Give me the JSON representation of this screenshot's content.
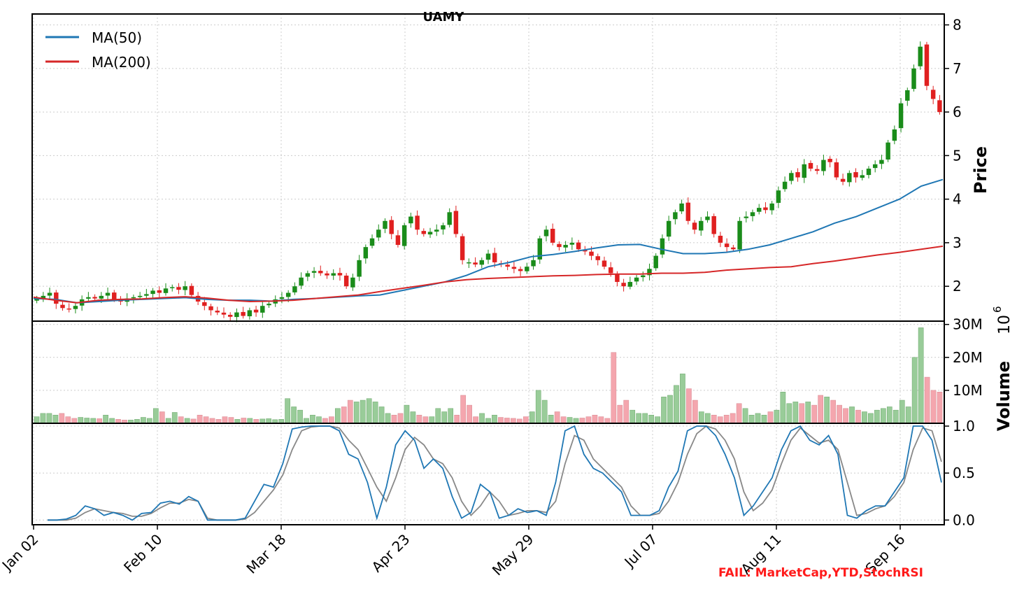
{
  "title": "UAMY",
  "fail_note": "FAIL: MarketCap,YTD,StochRSI",
  "colors": {
    "up": "#1a8c1a",
    "down": "#e02020",
    "ma50": "#1f77b4",
    "ma200": "#d62728",
    "vol_up": "#99cc99",
    "vol_down": "#f4a6ae",
    "stoch_k": "#1f77b4",
    "stoch_d": "#888888",
    "grid": "#cccccc",
    "fail": "#ff1a1a"
  },
  "chart_data": {
    "type": "line",
    "x_ticks": [
      "Jan 02",
      "Feb 10",
      "Mar 18",
      "Apr 23",
      "May 29",
      "Jul 07",
      "Aug 11",
      "Sep 16"
    ],
    "legend": [
      "MA(50)",
      "MA(200)"
    ],
    "legend_position": "top-left",
    "grid": true,
    "price_panel": {
      "ylabel": "Price",
      "y_ticks": [
        2,
        3,
        4,
        5,
        6,
        7,
        8
      ],
      "ylim": [
        1.2,
        8.25
      ],
      "series": [
        {
          "name": "Close (approx.)",
          "values": [
            1.72,
            1.78,
            1.85,
            1.6,
            1.5,
            1.48,
            1.55,
            1.7,
            1.75,
            1.72,
            1.78,
            1.85,
            1.7,
            1.65,
            1.72,
            1.75,
            1.78,
            1.82,
            1.9,
            1.85,
            1.95,
            1.98,
            1.92,
            2.0,
            1.8,
            1.65,
            1.55,
            1.45,
            1.4,
            1.35,
            1.3,
            1.4,
            1.32,
            1.45,
            1.4,
            1.55,
            1.6,
            1.7,
            1.75,
            1.85,
            2.0,
            2.2,
            2.3,
            2.35,
            2.3,
            2.25,
            2.3,
            2.25,
            2.0,
            2.2,
            2.6,
            2.9,
            3.1,
            3.3,
            3.5,
            3.2,
            2.95,
            3.4,
            3.6,
            3.3,
            3.2,
            3.25,
            3.3,
            3.4,
            3.7,
            3.2,
            2.6,
            2.55,
            2.5,
            2.6,
            2.75,
            2.55,
            2.5,
            2.45,
            2.4,
            2.35,
            2.45,
            2.6,
            3.1,
            3.3,
            3.0,
            2.9,
            2.95,
            3.0,
            2.85,
            2.8,
            2.7,
            2.6,
            2.45,
            2.3,
            2.1,
            2.0,
            2.1,
            2.2,
            2.25,
            2.4,
            2.7,
            3.1,
            3.5,
            3.7,
            3.9,
            3.5,
            3.3,
            3.5,
            3.6,
            3.2,
            3.0,
            2.9,
            2.85,
            3.5,
            3.6,
            3.7,
            3.8,
            3.75,
            3.9,
            4.2,
            4.4,
            4.6,
            4.5,
            4.8,
            4.7,
            4.65,
            4.9,
            4.85,
            4.5,
            4.4,
            4.6,
            4.5,
            4.55,
            4.7,
            4.8,
            4.9,
            5.3,
            5.6,
            6.2,
            6.5,
            7.0,
            7.5,
            6.6,
            6.3,
            6.0
          ]
        },
        {
          "name": "MA(50)",
          "values": [
            1.72,
            1.7,
            1.62,
            1.65,
            1.68,
            1.7,
            1.72,
            1.74,
            1.7,
            1.68,
            1.68,
            1.66,
            1.7,
            1.72,
            1.75,
            1.78,
            1.8,
            1.9,
            2.0,
            2.1,
            2.25,
            2.45,
            2.55,
            2.68,
            2.73,
            2.8,
            2.88,
            2.95,
            2.96,
            2.85,
            2.75,
            2.75,
            2.78,
            2.85,
            2.95,
            3.1,
            3.25,
            3.45,
            3.6,
            3.8,
            4.0,
            4.3,
            4.45
          ]
        },
        {
          "name": "MA(200)",
          "values": [
            1.75,
            1.68,
            1.62,
            1.68,
            1.7,
            1.71,
            1.74,
            1.76,
            1.73,
            1.68,
            1.65,
            1.66,
            1.68,
            1.72,
            1.76,
            1.8,
            1.88,
            1.95,
            2.02,
            2.1,
            2.15,
            2.18,
            2.2,
            2.22,
            2.24,
            2.25,
            2.27,
            2.28,
            2.28,
            2.3,
            2.3,
            2.32,
            2.37,
            2.4,
            2.43,
            2.45,
            2.52,
            2.58,
            2.65,
            2.72,
            2.78,
            2.85,
            2.92
          ]
        }
      ]
    },
    "volume_panel": {
      "ylabel": "Volume",
      "scale_label": "10^6",
      "y_ticks": [
        "30M",
        "20M",
        "10M"
      ],
      "y_tick_values": [
        30,
        20,
        10
      ],
      "ylim": [
        0,
        31
      ],
      "values": [
        2,
        3,
        3,
        2.5,
        3,
        2,
        1.5,
        1.8,
        1.6,
        1.5,
        1.4,
        2.5,
        1.5,
        1.2,
        1,
        1,
        1.2,
        1.8,
        1.5,
        4.5,
        3.5,
        1.5,
        3.3,
        2,
        1.5,
        1.3,
        2.5,
        2,
        1.5,
        1.2,
        2,
        1.8,
        1.2,
        1.6,
        1.5,
        1.2,
        1.3,
        1.4,
        1.1,
        1.2,
        7.5,
        5,
        4,
        1.5,
        2.5,
        2,
        1.5,
        2,
        4.5,
        5,
        7,
        6.5,
        7,
        7.5,
        6.5,
        5,
        3,
        2.5,
        3,
        5.5,
        3.5,
        2.5,
        2,
        2,
        4.5,
        3.5,
        4.5,
        2.5,
        8.5,
        5.5,
        2,
        3,
        1.5,
        2.5,
        1.8,
        1.6,
        1.5,
        1.3,
        2,
        3.5,
        10,
        7,
        2.5,
        3.5,
        2,
        1.8,
        1.5,
        1.6,
        2,
        2.5,
        2,
        1.5,
        21.5,
        5.5,
        7,
        4,
        3,
        3,
        2.5,
        2,
        8,
        8.5,
        11.5,
        15,
        10.5,
        7,
        3.5,
        3,
        2.5,
        2,
        2.5,
        3,
        6,
        4.5,
        2.5,
        3,
        2.5,
        3.5,
        4,
        9.5,
        6,
        6.5,
        6,
        6.5,
        5.5,
        8.5,
        8,
        7,
        5.5,
        4.5,
        5,
        4,
        3.5,
        3,
        4,
        4.5,
        5,
        4,
        7,
        5,
        20,
        29,
        14,
        10,
        9.5
      ]
    },
    "stoch_panel": {
      "y_ticks": [
        0.0,
        0.5,
        1.0
      ],
      "ylim": [
        -0.05,
        1.03
      ],
      "k_values": [
        0,
        0,
        0.01,
        0.05,
        0.15,
        0.12,
        0.05,
        0.08,
        0.05,
        0,
        0.07,
        0.08,
        0.18,
        0.2,
        0.17,
        0.25,
        0.2,
        0,
        0,
        0,
        0,
        0.02,
        0.2,
        0.38,
        0.35,
        0.6,
        0.97,
        0.99,
        1,
        1,
        1,
        0.95,
        0.7,
        0.65,
        0.4,
        0.02,
        0.35,
        0.8,
        0.95,
        0.85,
        0.55,
        0.65,
        0.55,
        0.25,
        0.02,
        0.08,
        0.38,
        0.3,
        0.02,
        0.05,
        0.12,
        0.08,
        0.1,
        0.05,
        0.4,
        0.95,
        1,
        0.7,
        0.55,
        0.5,
        0.4,
        0.3,
        0.05,
        0.05,
        0.05,
        0.1,
        0.35,
        0.52,
        0.95,
        1,
        1,
        0.9,
        0.7,
        0.45,
        0.05,
        0.15,
        0.3,
        0.45,
        0.75,
        0.95,
        1,
        0.85,
        0.8,
        0.9,
        0.7,
        0.05,
        0.02,
        0.1,
        0.15,
        0.15,
        0.3,
        0.45,
        1,
        1,
        0.85,
        0.4
      ],
      "d_values": [
        0,
        0,
        0,
        0.02,
        0.08,
        0.12,
        0.1,
        0.08,
        0.07,
        0.04,
        0.04,
        0.07,
        0.13,
        0.18,
        0.18,
        0.22,
        0.2,
        0.02,
        0,
        0,
        0,
        0.01,
        0.08,
        0.2,
        0.32,
        0.48,
        0.75,
        0.95,
        0.99,
        1,
        1,
        0.98,
        0.85,
        0.75,
        0.55,
        0.35,
        0.2,
        0.45,
        0.75,
        0.88,
        0.8,
        0.65,
        0.6,
        0.45,
        0.2,
        0.05,
        0.15,
        0.3,
        0.2,
        0.05,
        0.07,
        0.1,
        0.1,
        0.08,
        0.2,
        0.6,
        0.9,
        0.85,
        0.65,
        0.55,
        0.45,
        0.35,
        0.15,
        0.05,
        0.05,
        0.07,
        0.2,
        0.4,
        0.7,
        0.92,
        1,
        0.97,
        0.85,
        0.65,
        0.3,
        0.1,
        0.18,
        0.32,
        0.6,
        0.85,
        0.98,
        0.9,
        0.82,
        0.85,
        0.75,
        0.4,
        0.05,
        0.07,
        0.12,
        0.15,
        0.25,
        0.4,
        0.75,
        0.98,
        0.95,
        0.62
      ]
    }
  }
}
